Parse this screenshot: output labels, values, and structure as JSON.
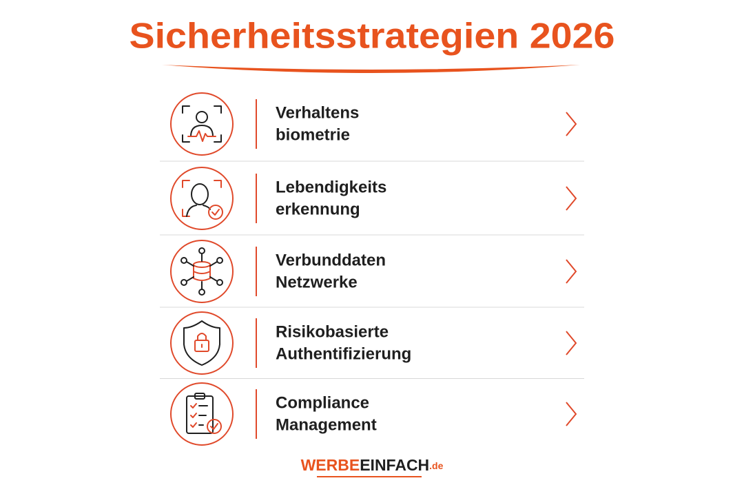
{
  "title": "Sicherheitsstrategien 2026",
  "items": [
    {
      "lines": [
        "Verhaltens",
        "biometrie"
      ]
    },
    {
      "lines": [
        "Lebendigkeits",
        "erkennung"
      ]
    },
    {
      "lines": [
        "Verbunddaten",
        "Netzwerke"
      ]
    },
    {
      "lines": [
        "Risikobasierte",
        "Authentifizierung"
      ]
    },
    {
      "lines": [
        "Compliance",
        "Management"
      ]
    }
  ],
  "brand": [
    "WERBE",
    "EINFACH",
    ".de"
  ]
}
